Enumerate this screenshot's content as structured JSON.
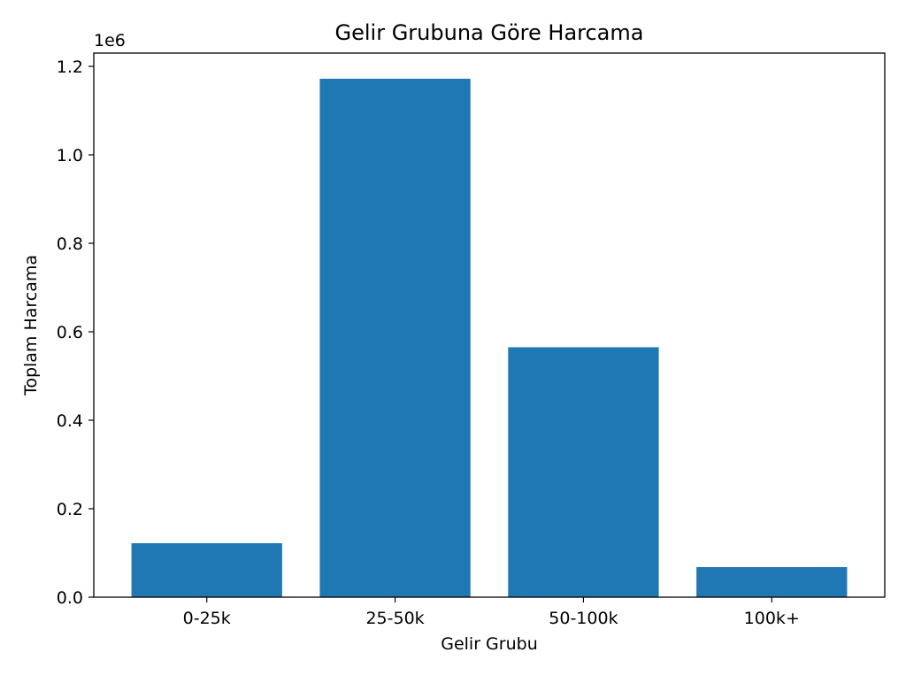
{
  "chart_data": {
    "type": "bar",
    "title": "Gelir Grubuna Göre Harcama",
    "xlabel": "Gelir Grubu",
    "ylabel": "Toplam Harcama",
    "y_offset_label": "1e6",
    "categories": [
      "0-25k",
      "25-50k",
      "50-100k",
      "100k+"
    ],
    "values": [
      122000,
      1172000,
      565000,
      68000
    ],
    "ylim": [
      0,
      1230000
    ],
    "yticks": [
      0,
      200000,
      400000,
      600000,
      800000,
      1000000,
      1200000
    ],
    "ytick_labels": [
      "0.0",
      "0.2",
      "0.4",
      "0.6",
      "0.8",
      "1.0",
      "1.2"
    ],
    "grid": false,
    "legend": "none",
    "bar_color": "#1f77b4"
  }
}
